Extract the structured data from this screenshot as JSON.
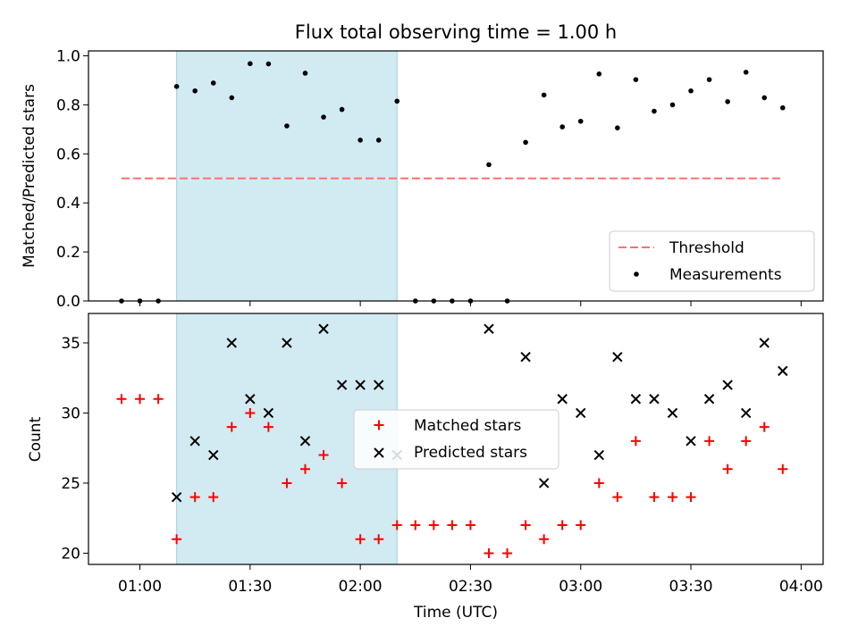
{
  "chart_data": [
    {
      "type": "scatter",
      "title": "Flux total observing time = 1.00 h",
      "xlabel": "",
      "ylabel": "Matched/Predicted stars",
      "x_axis": "time (UTC)",
      "ylim": [
        0,
        1.0
      ],
      "y_ticks": [
        "0.0",
        "0.2",
        "0.4",
        "0.6",
        "0.8",
        "1.0"
      ],
      "shaded_span": {
        "start": "01:10",
        "end": "02:10",
        "color": "#add8e6"
      },
      "threshold": {
        "name": "Threshold",
        "value": 0.5,
        "from": "00:55",
        "to": "03:55",
        "color": "#ff7070",
        "style": "dashed"
      },
      "legend": {
        "position": "lower-right",
        "entries": [
          "Threshold",
          "Measurements"
        ]
      },
      "series": [
        {
          "name": "Measurements",
          "marker": "dot",
          "color": "#000000",
          "x": [
            "00:55",
            "01:00",
            "01:05",
            "01:10",
            "01:15",
            "01:20",
            "01:25",
            "01:30",
            "01:35",
            "01:40",
            "01:45",
            "01:50",
            "01:55",
            "02:00",
            "02:05",
            "02:10",
            "02:15",
            "02:20",
            "02:25",
            "02:30",
            "02:35",
            "02:40",
            "02:45",
            "02:50",
            "02:55",
            "03:00",
            "03:05",
            "03:10",
            "03:15",
            "03:20",
            "03:25",
            "03:30",
            "03:35",
            "03:40",
            "03:45",
            "03:50",
            "03:55"
          ],
          "y": [
            0.0,
            0.0,
            0.0,
            0.875,
            0.857,
            0.889,
            0.829,
            0.968,
            0.967,
            0.714,
            0.929,
            0.75,
            0.781,
            0.656,
            0.656,
            0.815,
            0.0,
            0.0,
            0.0,
            0.0,
            0.556,
            0.0,
            0.647,
            0.84,
            0.71,
            0.733,
            0.926,
            0.706,
            0.903,
            0.774,
            0.8,
            0.857,
            0.903,
            0.813,
            0.933,
            0.829,
            0.788
          ]
        }
      ]
    },
    {
      "type": "scatter",
      "title": "",
      "xlabel": "Time (UTC)",
      "ylabel": "Count",
      "ylim": [
        19.2,
        37.1
      ],
      "y_ticks": [
        "20",
        "25",
        "30",
        "35"
      ],
      "x_ticks": [
        "01:00",
        "01:30",
        "02:00",
        "02:30",
        "03:00",
        "03:30",
        "04:00"
      ],
      "shaded_span": {
        "start": "01:10",
        "end": "02:10",
        "color": "#add8e6"
      },
      "legend": {
        "position": "center",
        "entries": [
          "Matched stars",
          "Predicted stars"
        ]
      },
      "series": [
        {
          "name": "Matched stars",
          "marker": "plus",
          "color": "#ff0000",
          "x": [
            "00:55",
            "01:00",
            "01:05",
            "01:10",
            "01:15",
            "01:20",
            "01:25",
            "01:30",
            "01:35",
            "01:40",
            "01:45",
            "01:50",
            "01:55",
            "02:00",
            "02:05",
            "02:10",
            "02:15",
            "02:20",
            "02:25",
            "02:30",
            "02:35",
            "02:40",
            "02:45",
            "02:50",
            "02:55",
            "03:00",
            "03:05",
            "03:10",
            "03:15",
            "03:20",
            "03:25",
            "03:30",
            "03:35",
            "03:40",
            "03:45",
            "03:50",
            "03:55"
          ],
          "y": [
            31,
            31,
            31,
            21,
            24,
            24,
            29,
            30,
            29,
            25,
            26,
            27,
            25,
            21,
            21,
            22,
            22,
            22,
            22,
            22,
            20,
            20,
            22,
            21,
            22,
            22,
            25,
            24,
            28,
            24,
            24,
            24,
            28,
            26,
            28,
            29,
            26
          ]
        },
        {
          "name": "Predicted stars",
          "marker": "x",
          "color": "#000000",
          "x": [
            "01:10",
            "01:15",
            "01:20",
            "01:25",
            "01:30",
            "01:35",
            "01:40",
            "01:45",
            "01:50",
            "01:55",
            "02:00",
            "02:05",
            "02:10",
            "02:35",
            "02:45",
            "02:50",
            "02:55",
            "03:00",
            "03:05",
            "03:10",
            "03:15",
            "03:20",
            "03:25",
            "03:30",
            "03:35",
            "03:40",
            "03:45",
            "03:50",
            "03:55"
          ],
          "y": [
            24,
            28,
            27,
            35,
            31,
            30,
            35,
            28,
            36,
            32,
            32,
            32,
            27,
            36,
            34,
            25,
            31,
            30,
            27,
            34,
            31,
            31,
            30,
            28,
            31,
            32,
            30,
            35,
            33
          ]
        }
      ]
    }
  ]
}
